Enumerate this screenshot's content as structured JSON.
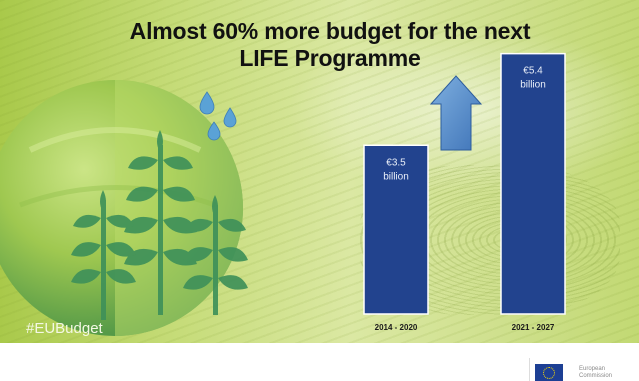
{
  "page": {
    "title_line1": "Almost 60% more budget for the next",
    "title_line2": "LIFE Programme",
    "hashtag": "#EUBudget",
    "footer_text_line1": "European",
    "footer_text_line2": "Commission"
  },
  "colors": {
    "bar": "#22438e",
    "arrow": "#4f86c6",
    "arrow_stroke": "#2d5d9c",
    "globe_dark": "#3f8f4a",
    "globe_light": "#a7cf5b",
    "leaf": "#3e8f5a",
    "drop": "#5aa2d6"
  },
  "icons": [
    "up-arrow-icon",
    "plant-globe-icon",
    "water-drop-icon",
    "eu-flag-icon"
  ],
  "chart_data": {
    "type": "bar",
    "title": "Almost 60% more budget for the next LIFE Programme",
    "categories": [
      "2014 - 2020",
      "2021 - 2027"
    ],
    "values": [
      3.5,
      5.4
    ],
    "data_labels": [
      [
        "€3.5",
        "billion"
      ],
      [
        "€5.4",
        "billion"
      ]
    ],
    "ylim": [
      0,
      5.6
    ],
    "grid": false,
    "legend": "none"
  }
}
